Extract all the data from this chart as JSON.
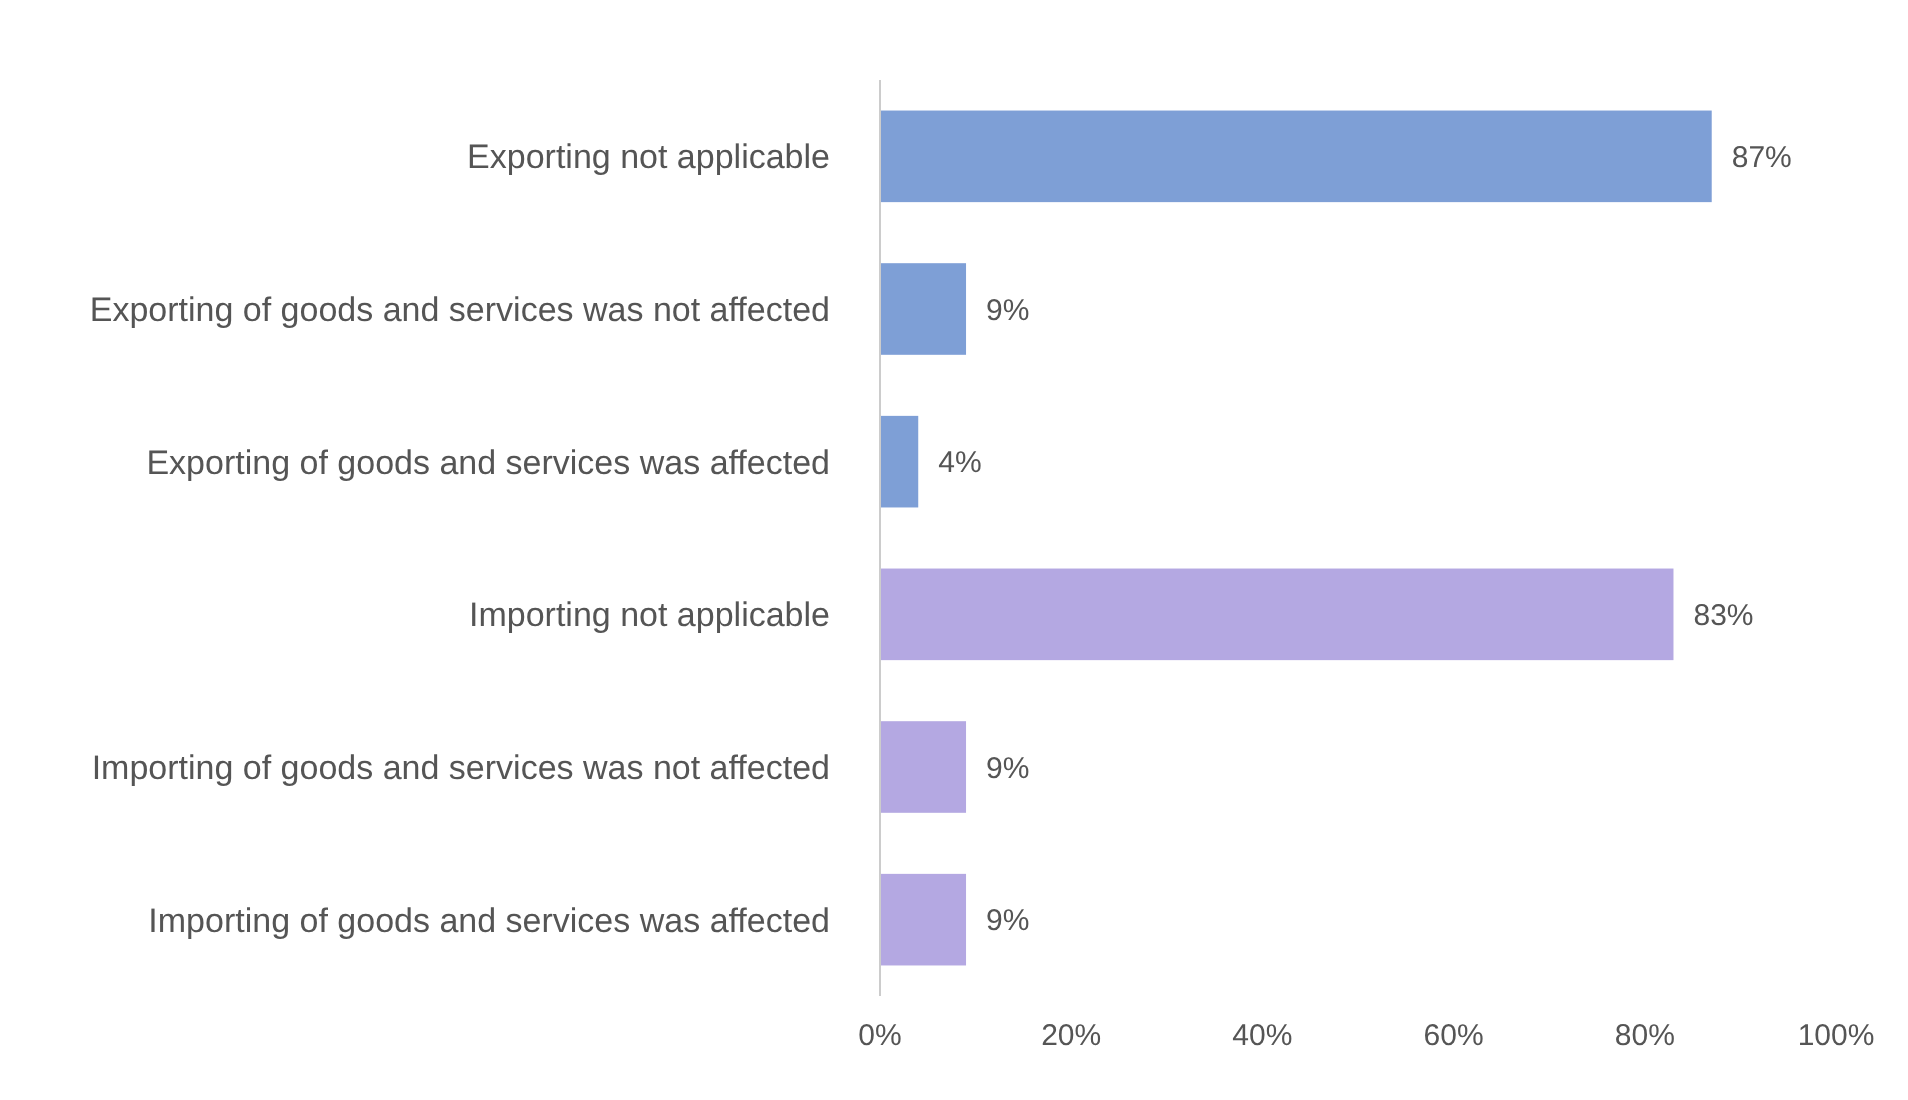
{
  "chart_data": {
    "type": "bar",
    "orientation": "horizontal",
    "categories": [
      "Exporting not applicable",
      "Exporting of goods and services was not affected",
      "Exporting of goods and services was affected",
      "Importing not applicable",
      "Importing of goods and services was not affected",
      "Importing of goods and services was affected"
    ],
    "values": [
      87,
      9,
      4,
      83,
      9,
      9
    ],
    "value_labels": [
      "87%",
      "9%",
      "4%",
      "83%",
      "9%",
      "9%"
    ],
    "colors": [
      "#7e9fd6",
      "#7e9fd6",
      "#7e9fd6",
      "#b4a8e2",
      "#b4a8e2",
      "#b4a8e2"
    ],
    "xlim": [
      0,
      100
    ],
    "xticks": [
      {
        "value": 0,
        "label": "0%"
      },
      {
        "value": 20,
        "label": "20%"
      },
      {
        "value": 40,
        "label": "40%"
      },
      {
        "value": 60,
        "label": "60%"
      },
      {
        "value": 80,
        "label": "80%"
      },
      {
        "value": 100,
        "label": "100%"
      }
    ],
    "grid": false
  }
}
